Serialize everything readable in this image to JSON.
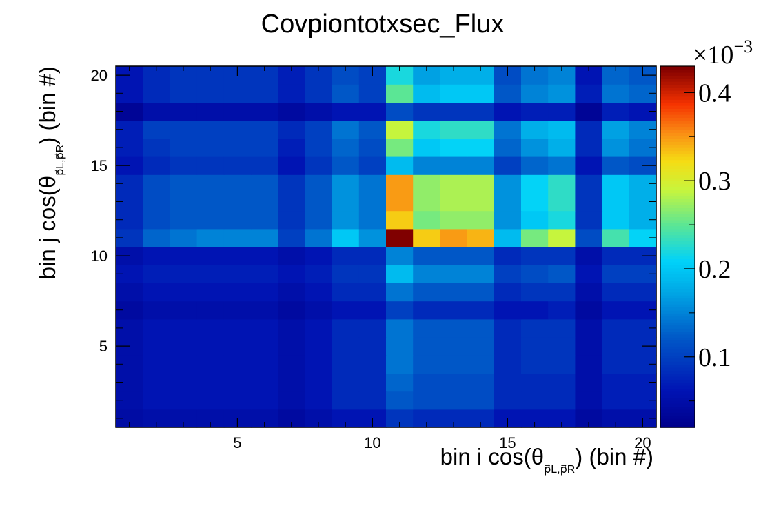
{
  "chart_data": {
    "type": "heatmap",
    "title": "Covpiontotxsec_Flux",
    "xlabel": "bin i cos(θ",
    "xlabel_sub": "p⃗L,p⃗R",
    "xlabel_tail": ") (bin #)",
    "ylabel": "bin j cos(θ",
    "ylabel_sub": "p⃗L,p⃗R",
    "ylabel_tail": ") (bin #)",
    "x_bins": [
      1,
      20
    ],
    "y_bins": [
      1,
      20
    ],
    "x_ticks": [
      5,
      10,
      15,
      20
    ],
    "y_ticks": [
      5,
      10,
      15,
      20
    ],
    "colorbar": {
      "multiplier": "×10",
      "exponent": "−3",
      "ticks": [
        0.1,
        0.2,
        0.3,
        0.4
      ],
      "range": [
        0.02,
        0.43
      ]
    },
    "z_units": "x1e-3",
    "values": [
      [
        0.045,
        0.05,
        0.05,
        0.05,
        0.05,
        0.05,
        0.04,
        0.05,
        0.06,
        0.06,
        0.09,
        0.08,
        0.08,
        0.08,
        0.06,
        0.06,
        0.06,
        0.04,
        0.05,
        0.05
      ],
      [
        0.05,
        0.06,
        0.06,
        0.06,
        0.06,
        0.06,
        0.05,
        0.06,
        0.08,
        0.08,
        0.12,
        0.11,
        0.11,
        0.11,
        0.08,
        0.08,
        0.08,
        0.05,
        0.07,
        0.07
      ],
      [
        0.05,
        0.06,
        0.06,
        0.06,
        0.06,
        0.06,
        0.05,
        0.06,
        0.08,
        0.08,
        0.13,
        0.11,
        0.11,
        0.11,
        0.08,
        0.08,
        0.08,
        0.05,
        0.07,
        0.07
      ],
      [
        0.05,
        0.06,
        0.06,
        0.06,
        0.06,
        0.06,
        0.05,
        0.06,
        0.08,
        0.08,
        0.14,
        0.12,
        0.12,
        0.12,
        0.08,
        0.09,
        0.09,
        0.05,
        0.08,
        0.08
      ],
      [
        0.05,
        0.06,
        0.06,
        0.06,
        0.06,
        0.06,
        0.05,
        0.06,
        0.08,
        0.08,
        0.14,
        0.12,
        0.12,
        0.12,
        0.08,
        0.09,
        0.09,
        0.05,
        0.08,
        0.08
      ],
      [
        0.05,
        0.06,
        0.06,
        0.06,
        0.06,
        0.06,
        0.05,
        0.06,
        0.08,
        0.08,
        0.14,
        0.12,
        0.12,
        0.12,
        0.08,
        0.09,
        0.09,
        0.05,
        0.08,
        0.08
      ],
      [
        0.04,
        0.05,
        0.05,
        0.05,
        0.05,
        0.05,
        0.04,
        0.05,
        0.06,
        0.06,
        0.1,
        0.08,
        0.08,
        0.08,
        0.06,
        0.06,
        0.07,
        0.04,
        0.06,
        0.06
      ],
      [
        0.05,
        0.06,
        0.06,
        0.06,
        0.06,
        0.06,
        0.05,
        0.06,
        0.08,
        0.08,
        0.14,
        0.12,
        0.12,
        0.12,
        0.08,
        0.09,
        0.09,
        0.05,
        0.08,
        0.08
      ],
      [
        0.06,
        0.07,
        0.07,
        0.07,
        0.07,
        0.07,
        0.06,
        0.07,
        0.09,
        0.09,
        0.19,
        0.15,
        0.15,
        0.15,
        0.1,
        0.11,
        0.12,
        0.06,
        0.1,
        0.1
      ],
      [
        0.05,
        0.06,
        0.06,
        0.06,
        0.06,
        0.06,
        0.05,
        0.06,
        0.08,
        0.08,
        0.15,
        0.12,
        0.12,
        0.12,
        0.08,
        0.09,
        0.09,
        0.05,
        0.08,
        0.08
      ],
      [
        0.09,
        0.13,
        0.14,
        0.15,
        0.15,
        0.15,
        0.1,
        0.14,
        0.2,
        0.16,
        0.43,
        0.33,
        0.35,
        0.34,
        0.19,
        0.26,
        0.29,
        0.11,
        0.24,
        0.21
      ],
      [
        0.08,
        0.11,
        0.12,
        0.12,
        0.12,
        0.12,
        0.09,
        0.12,
        0.16,
        0.14,
        0.33,
        0.26,
        0.27,
        0.27,
        0.16,
        0.2,
        0.22,
        0.09,
        0.2,
        0.18
      ],
      [
        0.08,
        0.11,
        0.12,
        0.12,
        0.12,
        0.12,
        0.09,
        0.12,
        0.16,
        0.14,
        0.35,
        0.27,
        0.28,
        0.28,
        0.16,
        0.21,
        0.23,
        0.09,
        0.2,
        0.18
      ],
      [
        0.08,
        0.11,
        0.12,
        0.12,
        0.12,
        0.12,
        0.09,
        0.12,
        0.16,
        0.14,
        0.35,
        0.27,
        0.28,
        0.28,
        0.16,
        0.21,
        0.23,
        0.09,
        0.2,
        0.18
      ],
      [
        0.06,
        0.08,
        0.09,
        0.09,
        0.09,
        0.09,
        0.06,
        0.09,
        0.12,
        0.1,
        0.19,
        0.15,
        0.15,
        0.15,
        0.1,
        0.13,
        0.14,
        0.06,
        0.12,
        0.11
      ],
      [
        0.07,
        0.09,
        0.1,
        0.1,
        0.1,
        0.1,
        0.07,
        0.1,
        0.13,
        0.11,
        0.26,
        0.2,
        0.21,
        0.21,
        0.13,
        0.16,
        0.18,
        0.08,
        0.16,
        0.14
      ],
      [
        0.07,
        0.1,
        0.1,
        0.1,
        0.1,
        0.1,
        0.08,
        0.1,
        0.14,
        0.12,
        0.29,
        0.22,
        0.23,
        0.23,
        0.14,
        0.18,
        0.19,
        0.08,
        0.17,
        0.15
      ],
      [
        0.03,
        0.05,
        0.05,
        0.05,
        0.05,
        0.05,
        0.04,
        0.05,
        0.06,
        0.06,
        0.11,
        0.09,
        0.09,
        0.09,
        0.06,
        0.07,
        0.07,
        0.03,
        0.07,
        0.06
      ],
      [
        0.06,
        0.08,
        0.09,
        0.09,
        0.09,
        0.09,
        0.07,
        0.09,
        0.12,
        0.1,
        0.25,
        0.19,
        0.2,
        0.2,
        0.12,
        0.15,
        0.16,
        0.07,
        0.14,
        0.13
      ],
      [
        0.06,
        0.08,
        0.09,
        0.09,
        0.09,
        0.09,
        0.07,
        0.09,
        0.11,
        0.1,
        0.22,
        0.17,
        0.18,
        0.18,
        0.11,
        0.14,
        0.15,
        0.06,
        0.13,
        0.12
      ]
    ]
  }
}
